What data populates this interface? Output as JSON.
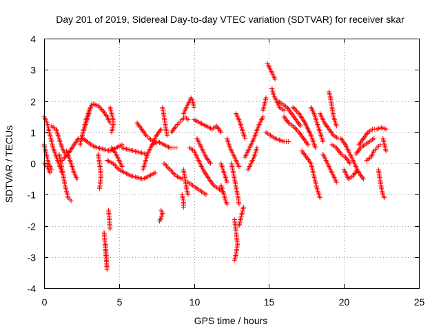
{
  "chart_data": {
    "type": "scatter",
    "title": "Day 201 of 2019, Sidereal Day-to-day VTEC variation (SDTVAR) for receiver skar",
    "xlabel": "GPS time / hours",
    "ylabel": "SDTVAR / TECUs",
    "xlim": [
      0,
      25
    ],
    "ylim": [
      -4,
      4
    ],
    "xticks": [
      0,
      5,
      10,
      15,
      20,
      25
    ],
    "yticks": [
      -4,
      -3,
      -2,
      -1,
      0,
      1,
      2,
      3,
      4
    ],
    "grid": true,
    "marker": "+",
    "marker_color": "#ff0000",
    "tracks": [
      {
        "x": [
          0.0,
          0.2,
          0.4,
          0.6,
          0.9,
          1.2
        ],
        "y": [
          1.5,
          1.3,
          0.9,
          0.5,
          0.1,
          -0.3
        ]
      },
      {
        "x": [
          0.0,
          0.15,
          0.3,
          0.5
        ],
        "y": [
          0.6,
          0.3,
          0.0,
          -0.2
        ]
      },
      {
        "x": [
          0.0,
          0.2,
          0.4
        ],
        "y": [
          0.0,
          -0.1,
          -0.3
        ]
      },
      {
        "x": [
          0.5,
          0.8,
          1.0,
          1.2,
          1.4
        ],
        "y": [
          1.2,
          1.1,
          0.8,
          0.5,
          0.3
        ]
      },
      {
        "x": [
          1.0,
          1.2,
          1.4,
          1.6,
          1.8
        ],
        "y": [
          0.3,
          -0.2,
          -0.7,
          -1.1,
          -1.2
        ]
      },
      {
        "x": [
          1.2,
          1.6,
          2.0,
          2.3,
          2.6,
          3.0,
          3.3,
          3.6,
          4.0,
          4.4,
          4.8,
          5.2
        ],
        "y": [
          0.1,
          0.3,
          0.6,
          0.8,
          0.8,
          0.65,
          0.55,
          0.5,
          0.45,
          0.4,
          0.5,
          0.6
        ]
      },
      {
        "x": [
          1.5,
          1.8,
          2.0,
          2.2
        ],
        "y": [
          0.4,
          0.0,
          -0.3,
          -0.5
        ]
      },
      {
        "x": [
          2.6,
          2.8,
          3.0,
          3.1,
          3.3,
          3.6,
          3.9,
          4.2,
          4.4
        ],
        "y": [
          1.0,
          1.3,
          1.6,
          1.8,
          1.9,
          1.85,
          1.7,
          1.5,
          1.3
        ]
      },
      {
        "x": [
          4.4,
          4.5,
          4.6,
          4.6,
          4.5
        ],
        "y": [
          1.8,
          1.6,
          1.4,
          1.2,
          1.0
        ]
      },
      {
        "x": [
          2.4,
          2.6,
          2.8,
          3.0,
          3.2
        ],
        "y": [
          0.6,
          1.0,
          1.4,
          1.7,
          1.9
        ]
      },
      {
        "x": [
          3.6,
          3.7,
          3.8,
          3.7
        ],
        "y": [
          0.3,
          0.0,
          -0.4,
          -0.8
        ]
      },
      {
        "x": [
          4.0,
          4.05,
          4.1,
          4.15,
          4.2,
          4.15,
          4.1
        ],
        "y": [
          -2.2,
          -2.5,
          -2.8,
          -3.1,
          -3.4,
          -3.0,
          -2.6
        ]
      },
      {
        "x": [
          4.3,
          4.35,
          4.4
        ],
        "y": [
          -1.5,
          -1.8,
          -2.1
        ]
      },
      {
        "x": [
          4.2,
          4.6,
          5.0,
          5.4,
          5.8,
          6.2,
          6.6,
          7.0,
          7.4
        ],
        "y": [
          0.1,
          0.0,
          -0.2,
          -0.3,
          -0.4,
          -0.45,
          -0.5,
          -0.4,
          -0.3
        ]
      },
      {
        "x": [
          4.5,
          4.8,
          5.0,
          5.2
        ],
        "y": [
          0.5,
          0.3,
          0.1,
          -0.1
        ]
      },
      {
        "x": [
          5.2,
          5.6,
          6.0,
          6.4,
          6.8
        ],
        "y": [
          0.5,
          0.45,
          0.4,
          0.35,
          0.3
        ]
      },
      {
        "x": [
          6.2,
          6.5,
          6.8,
          7.0,
          7.3
        ],
        "y": [
          1.3,
          1.1,
          0.9,
          0.8,
          0.7
        ]
      },
      {
        "x": [
          6.6,
          6.9,
          7.2,
          7.5,
          7.8
        ],
        "y": [
          -0.2,
          0.3,
          0.6,
          0.9,
          1.1
        ]
      },
      {
        "x": [
          7.2,
          7.6,
          8.0,
          8.4,
          8.8
        ],
        "y": [
          0.6,
          0.7,
          0.6,
          0.5,
          0.5
        ]
      },
      {
        "x": [
          7.8,
          7.9,
          7.8,
          7.7
        ],
        "y": [
          -1.5,
          -1.6,
          -1.75,
          -1.85
        ]
      },
      {
        "x": [
          7.9,
          8.0,
          8.1,
          8.2
        ],
        "y": [
          1.8,
          1.5,
          1.2,
          0.9
        ]
      },
      {
        "x": [
          8.0,
          8.4,
          8.8,
          9.2,
          9.4
        ],
        "y": [
          0.0,
          -0.2,
          -0.4,
          -0.5,
          -0.5
        ]
      },
      {
        "x": [
          8.5,
          8.8,
          9.0,
          9.2,
          9.4,
          9.6
        ],
        "y": [
          1.0,
          1.2,
          1.3,
          1.4,
          1.5,
          1.4
        ]
      },
      {
        "x": [
          9.3,
          9.5,
          9.6,
          9.7,
          9.8,
          9.9,
          10.0
        ],
        "y": [
          1.6,
          1.8,
          1.9,
          2.0,
          2.1,
          2.0,
          1.8
        ]
      },
      {
        "x": [
          9.3,
          9.4,
          9.5,
          9.6
        ],
        "y": [
          -0.2,
          -0.5,
          -0.8,
          -1.0
        ]
      },
      {
        "x": [
          9.2,
          9.3,
          9.3
        ],
        "y": [
          -1.0,
          -1.2,
          -1.4
        ]
      },
      {
        "x": [
          9.7,
          10.0,
          10.3,
          10.6,
          11.0,
          11.3,
          11.6,
          11.9
        ],
        "y": [
          0.5,
          0.4,
          0.1,
          -0.2,
          -0.5,
          -0.7,
          -0.8,
          -0.9
        ]
      },
      {
        "x": [
          9.6,
          9.9,
          10.2,
          10.5,
          10.8
        ],
        "y": [
          -0.6,
          -0.7,
          -0.8,
          -0.9,
          -1.0
        ]
      },
      {
        "x": [
          10.0,
          10.4,
          10.8,
          11.2,
          11.5,
          11.8
        ],
        "y": [
          1.4,
          1.3,
          1.2,
          1.1,
          1.2,
          1.0
        ]
      },
      {
        "x": [
          10.2,
          10.5,
          10.8,
          11.1
        ],
        "y": [
          0.8,
          0.5,
          0.2,
          0.0
        ]
      },
      {
        "x": [
          11.8,
          12.0,
          12.1,
          12.2
        ],
        "y": [
          -0.7,
          -1.0,
          -1.2,
          -1.3
        ]
      },
      {
        "x": [
          11.8,
          12.0,
          12.2
        ],
        "y": [
          0.0,
          -0.3,
          -0.6
        ]
      },
      {
        "x": [
          12.2,
          12.4,
          12.6,
          12.8,
          13.0
        ],
        "y": [
          0.8,
          0.5,
          0.3,
          0.1,
          -0.1
        ]
      },
      {
        "x": [
          12.5,
          12.7,
          12.9,
          13.0
        ],
        "y": [
          0.0,
          -0.5,
          -1.0,
          -1.3
        ]
      },
      {
        "x": [
          12.7,
          12.8,
          12.9,
          12.8,
          12.7
        ],
        "y": [
          -1.8,
          -2.2,
          -2.6,
          -2.9,
          -3.1
        ]
      },
      {
        "x": [
          13.0,
          13.1,
          13.2,
          13.3
        ],
        "y": [
          -2.0,
          -1.8,
          -1.6,
          -1.4
        ]
      },
      {
        "x": [
          12.8,
          13.0,
          13.2,
          13.4
        ],
        "y": [
          1.6,
          1.4,
          1.1,
          0.8
        ]
      },
      {
        "x": [
          13.4,
          13.7,
          14.0,
          14.3,
          14.6
        ],
        "y": [
          0.2,
          0.5,
          0.8,
          1.2,
          1.5
        ]
      },
      {
        "x": [
          13.6,
          13.8,
          14.0,
          14.2
        ],
        "y": [
          -0.2,
          0.0,
          0.2,
          0.5
        ]
      },
      {
        "x": [
          14.6,
          14.7,
          14.8
        ],
        "y": [
          1.7,
          1.9,
          2.1
        ]
      },
      {
        "x": [
          14.9,
          15.0,
          15.1,
          15.2,
          15.3,
          15.4
        ],
        "y": [
          3.2,
          3.1,
          3.0,
          2.9,
          2.8,
          2.7
        ]
      },
      {
        "x": [
          15.2,
          15.3,
          15.5,
          15.7,
          16.0
        ],
        "y": [
          2.4,
          2.2,
          2.0,
          1.8,
          1.7
        ]
      },
      {
        "x": [
          14.8,
          15.1,
          15.4,
          15.7,
          16.0,
          16.3
        ],
        "y": [
          1.0,
          0.9,
          0.8,
          0.75,
          0.7,
          0.7
        ]
      },
      {
        "x": [
          15.6,
          15.9,
          16.2,
          16.5,
          16.8,
          17.1
        ],
        "y": [
          2.0,
          1.9,
          1.8,
          1.6,
          1.4,
          1.2
        ]
      },
      {
        "x": [
          16.0,
          16.3,
          16.6,
          17.0,
          17.3,
          17.6
        ],
        "y": [
          1.5,
          1.3,
          1.2,
          1.0,
          0.8,
          0.6
        ]
      },
      {
        "x": [
          16.6,
          17.0,
          17.4,
          17.8,
          18.1
        ],
        "y": [
          1.8,
          1.6,
          1.3,
          0.9,
          0.5
        ]
      },
      {
        "x": [
          17.2,
          17.5,
          17.8,
          18.0,
          18.2,
          18.4
        ],
        "y": [
          0.4,
          0.2,
          0.0,
          -0.4,
          -0.8,
          -1.1
        ]
      },
      {
        "x": [
          17.8,
          18.0,
          18.2,
          18.4,
          18.6
        ],
        "y": [
          1.8,
          1.6,
          1.3,
          1.0,
          0.7
        ]
      },
      {
        "x": [
          18.4,
          18.7,
          19.0,
          19.3,
          19.6
        ],
        "y": [
          1.6,
          1.3,
          1.1,
          0.9,
          0.8
        ]
      },
      {
        "x": [
          18.6,
          18.9,
          19.2,
          19.5
        ],
        "y": [
          0.3,
          0.0,
          -0.3,
          -0.6
        ]
      },
      {
        "x": [
          19.0,
          19.1,
          19.2,
          19.3,
          19.5
        ],
        "y": [
          2.3,
          2.1,
          1.8,
          1.5,
          1.2
        ]
      },
      {
        "x": [
          19.2,
          19.5,
          19.8,
          20.1,
          20.4
        ],
        "y": [
          0.6,
          0.5,
          0.3,
          0.2,
          0.0
        ]
      },
      {
        "x": [
          19.8,
          20.1,
          20.4,
          20.7,
          21.0,
          21.3
        ],
        "y": [
          0.8,
          0.6,
          0.3,
          0.0,
          -0.3,
          -0.5
        ]
      },
      {
        "x": [
          20.0,
          20.3,
          20.6,
          20.9
        ],
        "y": [
          -0.2,
          -0.5,
          -0.4,
          -0.2
        ]
      },
      {
        "x": [
          20.8,
          21.1,
          21.4,
          21.7,
          22.0
        ],
        "y": [
          0.3,
          0.5,
          0.6,
          0.7,
          0.8
        ]
      },
      {
        "x": [
          21.0,
          21.3,
          21.6,
          21.9,
          22.2,
          22.5,
          22.8
        ],
        "y": [
          0.6,
          0.8,
          1.0,
          1.1,
          1.1,
          1.15,
          1.1
        ]
      },
      {
        "x": [
          21.5,
          21.8,
          22.0,
          22.2,
          22.4
        ],
        "y": [
          0.1,
          0.2,
          0.4,
          0.5,
          0.6
        ]
      },
      {
        "x": [
          22.3,
          22.4,
          22.5,
          22.6,
          22.7
        ],
        "y": [
          -0.2,
          -0.5,
          -0.8,
          -1.0,
          -1.1
        ]
      },
      {
        "x": [
          22.6,
          22.7,
          22.8
        ],
        "y": [
          0.8,
          0.6,
          0.4
        ]
      }
    ]
  }
}
